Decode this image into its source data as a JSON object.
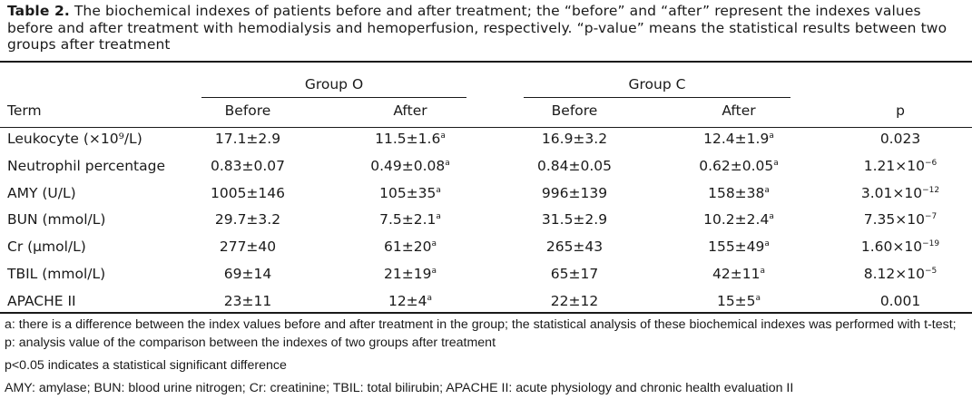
{
  "caption": {
    "label": "Table 2.",
    "text": " The biochemical indexes of patients before and after treatment; the “before” and “after” represent the indexes values before and after treatment with hemodialysis and hemoperfusion, respectively. “p-value” means the statistical results between two groups after treatment"
  },
  "table": {
    "group_o": "Group O",
    "group_c": "Group C",
    "headers": {
      "term": "Term",
      "o_before": "Before",
      "o_after": "After",
      "c_before": "Before",
      "c_after": "After",
      "p": "p"
    },
    "rows": [
      {
        "term": "Leukocyte (×10⁹/L)",
        "o_before": "17.1±2.9",
        "o_after": "11.5±1.6",
        "c_before": "16.9±3.2",
        "c_after": "12.4±1.9",
        "p": "0.023",
        "p_exp": ""
      },
      {
        "term": "Neutrophil percentage",
        "o_before": "0.83±0.07",
        "o_after": "0.49±0.08",
        "c_before": "0.84±0.05",
        "c_after": "0.62±0.05",
        "p": "1.21×10",
        "p_exp": "−6"
      },
      {
        "term": "AMY (U/L)",
        "o_before": "1005±146",
        "o_after": "105±35",
        "c_before": "996±139",
        "c_after": "158±38",
        "p": "3.01×10",
        "p_exp": "−12"
      },
      {
        "term": "BUN (mmol/L)",
        "o_before": "29.7±3.2",
        "o_after": "7.5±2.1",
        "c_before": "31.5±2.9",
        "c_after": "10.2±2.4",
        "p": "7.35×10",
        "p_exp": "−7"
      },
      {
        "term": "Cr (μmol/L)",
        "o_before": "277±40",
        "o_after": "61±20",
        "c_before": "265±43",
        "c_after": "155±49",
        "p": "1.60×10",
        "p_exp": "−19"
      },
      {
        "term": "TBIL (mmol/L)",
        "o_before": "69±14",
        "o_after": "21±19",
        "c_before": "65±17",
        "c_after": "42±11",
        "p": "8.12×10",
        "p_exp": "−5"
      },
      {
        "term": "APACHE II",
        "o_before": "23±11",
        "o_after": "12±4",
        "c_before": "22±12",
        "c_after": "15±5",
        "p": "0.001",
        "p_exp": ""
      }
    ],
    "sig_mark": "a"
  },
  "footnotes": [
    "a: there is a difference between the index values before and after treatment in the group; the statistical analysis of these biochemical indexes was performed with t-test; p: analysis value of the comparison between the indexes of two groups after treatment",
    "p<0.05 indicates a statistical significant difference",
    "AMY: amylase; BUN: blood urine nitrogen; Cr: creatinine; TBIL: total bilirubin; APACHE II: acute physiology and chronic health evaluation II"
  ]
}
